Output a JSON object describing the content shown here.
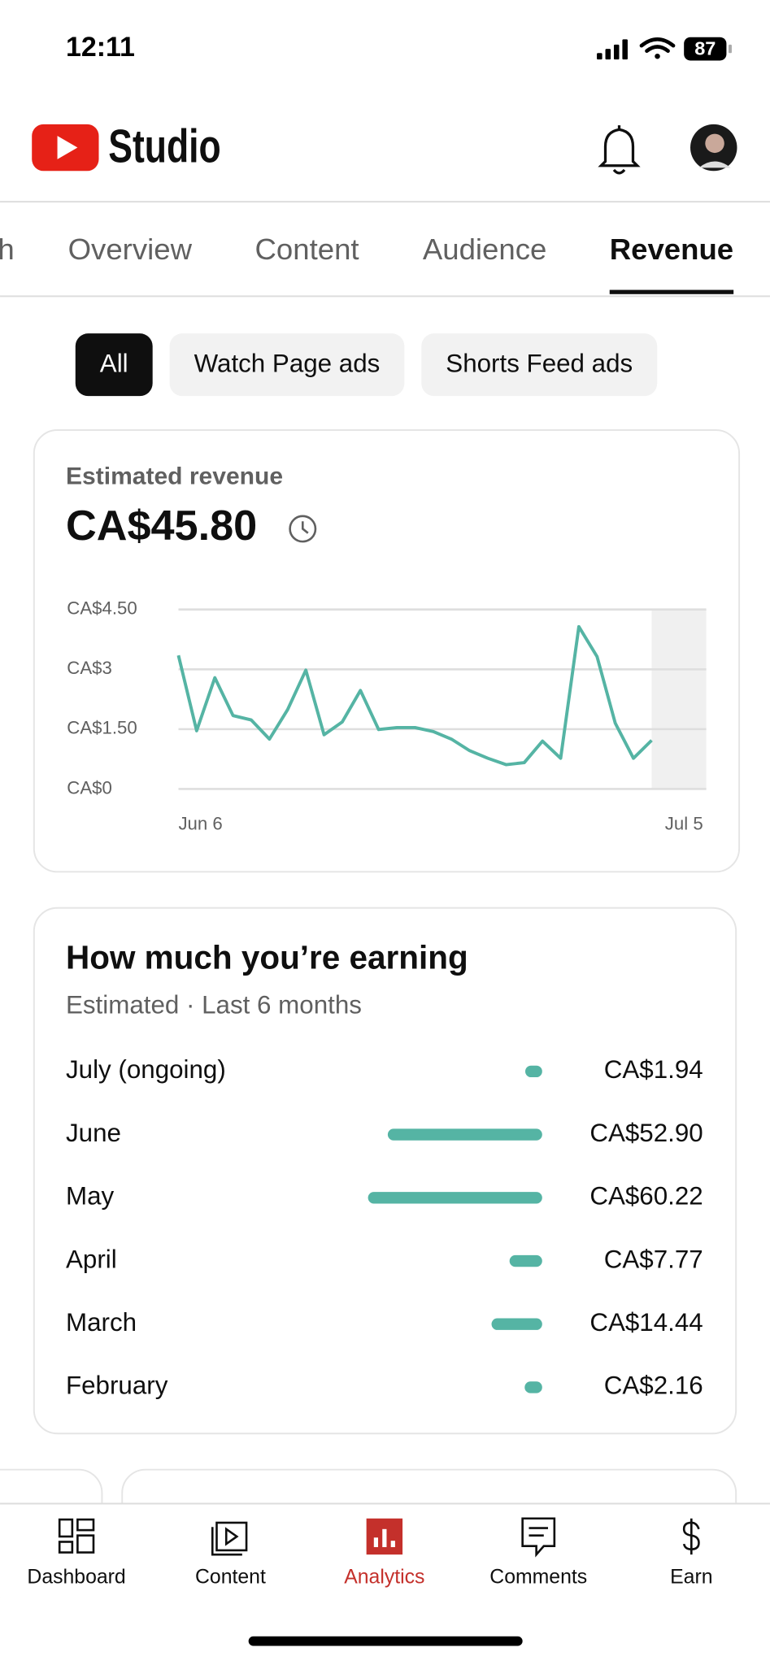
{
  "status_bar": {
    "time": "12:11",
    "battery": "87"
  },
  "header": {
    "title": "Studio"
  },
  "tabs": {
    "items": [
      "h",
      "Overview",
      "Content",
      "Audience",
      "Revenue"
    ],
    "active": "Revenue"
  },
  "chips": {
    "items": [
      "All",
      "Watch Page ads",
      "Shorts Feed ads"
    ],
    "active": "All"
  },
  "chart_data": [
    {
      "type": "line",
      "title": "Estimated revenue",
      "subtitle": "CA$45.80",
      "color": "#55b4a4",
      "categories": [
        "Jun 6",
        null,
        null,
        null,
        null,
        null,
        null,
        null,
        null,
        null,
        null,
        null,
        null,
        null,
        null,
        null,
        null,
        null,
        null,
        null,
        null,
        null,
        null,
        null,
        null,
        null,
        null,
        null,
        null,
        "Jul 5"
      ],
      "values": [
        3.35,
        1.46,
        2.79,
        1.84,
        1.73,
        1.25,
        1.99,
        2.98,
        1.36,
        1.68,
        2.47,
        1.49,
        1.54,
        1.54,
        1.44,
        1.25,
        0.96,
        0.77,
        0.61,
        0.66,
        1.2,
        0.77,
        4.07,
        3.32,
        1.65,
        0.77,
        1.22,
        null,
        null,
        null
      ],
      "ylim": [
        0,
        4.5
      ],
      "yticks": [
        {
          "value": 0,
          "label": "CA$0"
        },
        {
          "value": 1.5,
          "label": "CA$1.50"
        },
        {
          "value": 3,
          "label": "CA$3"
        },
        {
          "value": 4.5,
          "label": "CA$4.50"
        }
      ],
      "grid": true
    },
    {
      "type": "bar",
      "title": "How much you’re earning",
      "subtitle": "Estimated · Last 6 months",
      "color": "#55b4a4",
      "categories": [
        "July (ongoing)",
        "June",
        "May",
        "April",
        "March",
        "February"
      ],
      "values": [
        1.94,
        52.9,
        60.22,
        7.77,
        14.44,
        2.16
      ],
      "value_labels": [
        "CA$1.94",
        "CA$52.90",
        "CA$60.22",
        "CA$7.77",
        "CA$14.44",
        "CA$2.16"
      ]
    }
  ],
  "bottom_nav": {
    "items": [
      "Dashboard",
      "Content",
      "Analytics",
      "Comments",
      "Earn"
    ],
    "active": "Analytics"
  }
}
